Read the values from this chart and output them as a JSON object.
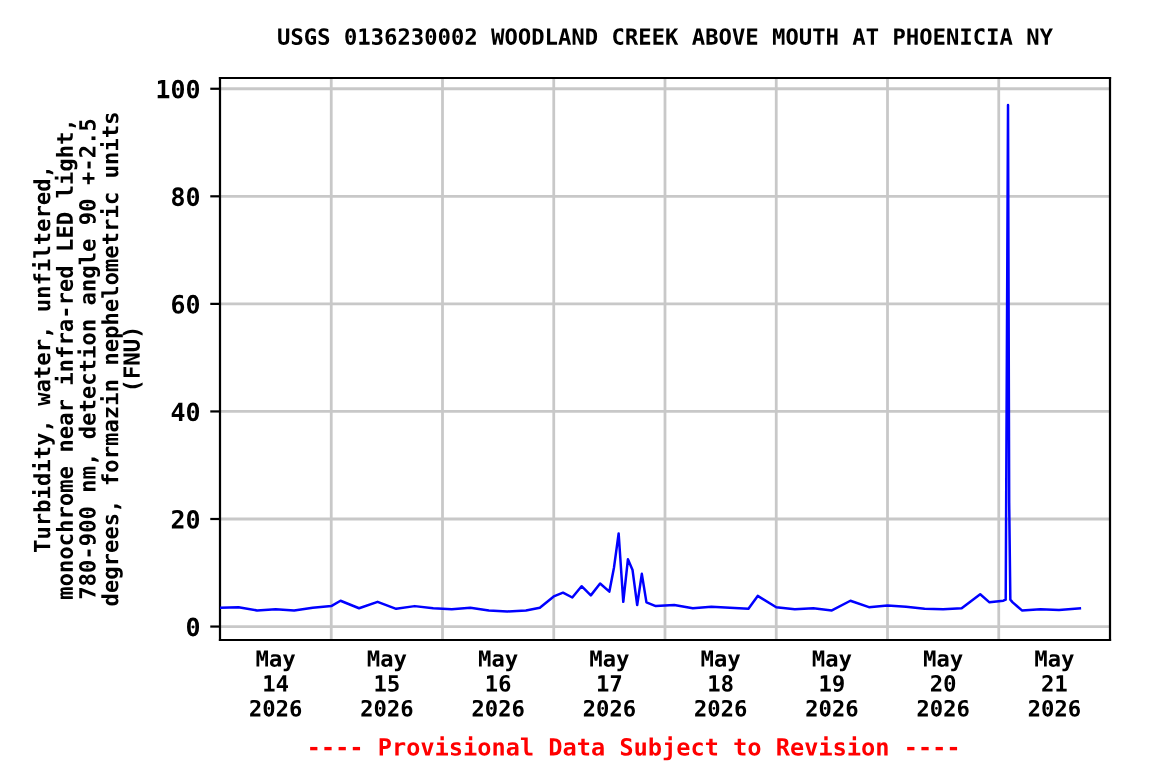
{
  "chart_data": {
    "type": "line",
    "title": "USGS 0136230002 WOODLAND CREEK ABOVE MOUTH AT PHOENICIA NY",
    "ylabel": "Turbidity, water, unfiltered,\nmonochrome near infra-red LED light,\n780-900 nm, detection angle 90 +-2.5\ndegrees, formazin nephelometric units\n(FNU)",
    "annotations": [
      "---- Provisional Data Subject to Revision ----"
    ],
    "xlim": [
      "2026-05-14T00:00",
      "2026-05-22T00:00"
    ],
    "xticks": [
      {
        "value": "2026-05-14T12:00",
        "label": "May\n14\n2026"
      },
      {
        "value": "2026-05-15T12:00",
        "label": "May\n15\n2026"
      },
      {
        "value": "2026-05-16T12:00",
        "label": "May\n16\n2026"
      },
      {
        "value": "2026-05-17T12:00",
        "label": "May\n17\n2026"
      },
      {
        "value": "2026-05-18T12:00",
        "label": "May\n18\n2026"
      },
      {
        "value": "2026-05-19T12:00",
        "label": "May\n19\n2026"
      },
      {
        "value": "2026-05-20T12:00",
        "label": "May\n20\n2026"
      },
      {
        "value": "2026-05-21T12:00",
        "label": "May\n21\n2026"
      },
      {
        "value": "2026-05-15T00:00",
        "label": null
      },
      {
        "value": "2026-05-16T00:00",
        "label": null
      },
      {
        "value": "2026-05-17T00:00",
        "label": null
      },
      {
        "value": "2026-05-18T00:00",
        "label": null
      },
      {
        "value": "2026-05-19T00:00",
        "label": null
      },
      {
        "value": "2026-05-20T00:00",
        "label": null
      },
      {
        "value": "2026-05-21T00:00",
        "label": null
      }
    ],
    "ylim": [
      -2.5,
      102
    ],
    "yticks": [
      0,
      20,
      40,
      60,
      80,
      100
    ],
    "grid": true,
    "series": [
      {
        "color": "#0000ff",
        "x": [
          "2026-05-14T00:00",
          "2026-05-14T04:00",
          "2026-05-14T08:00",
          "2026-05-14T12:00",
          "2026-05-14T16:00",
          "2026-05-14T20:00",
          "2026-05-15T00:00",
          "2026-05-15T02:00",
          "2026-05-15T06:00",
          "2026-05-15T10:00",
          "2026-05-15T14:00",
          "2026-05-15T18:00",
          "2026-05-15T22:00",
          "2026-05-16T02:00",
          "2026-05-16T06:00",
          "2026-05-16T10:00",
          "2026-05-16T14:00",
          "2026-05-16T18:00",
          "2026-05-16T21:00",
          "2026-05-17T00:00",
          "2026-05-17T02:00",
          "2026-05-17T04:00",
          "2026-05-17T06:00",
          "2026-05-17T08:00",
          "2026-05-17T10:00",
          "2026-05-17T12:00",
          "2026-05-17T13:00",
          "2026-05-17T14:00",
          "2026-05-17T15:00",
          "2026-05-17T16:00",
          "2026-05-17T17:00",
          "2026-05-17T18:00",
          "2026-05-17T19:00",
          "2026-05-17T20:00",
          "2026-05-17T22:00",
          "2026-05-18T02:00",
          "2026-05-18T06:00",
          "2026-05-18T10:00",
          "2026-05-18T14:00",
          "2026-05-18T18:00",
          "2026-05-18T20:00",
          "2026-05-19T00:00",
          "2026-05-19T04:00",
          "2026-05-19T08:00",
          "2026-05-19T12:00",
          "2026-05-19T16:00",
          "2026-05-19T20:00",
          "2026-05-20T00:00",
          "2026-05-20T04:00",
          "2026-05-20T08:00",
          "2026-05-20T12:00",
          "2026-05-20T16:00",
          "2026-05-20T20:00",
          "2026-05-20T22:00",
          "2026-05-21T01:00",
          "2026-05-21T01:30",
          "2026-05-21T01:45",
          "2026-05-21T02:00",
          "2026-05-21T02:15",
          "2026-05-21T02:30",
          "2026-05-21T03:00",
          "2026-05-21T05:00",
          "2026-05-21T09:00",
          "2026-05-21T13:00",
          "2026-05-21T17:30"
        ],
        "values": [
          3.5,
          3.6,
          3.0,
          3.2,
          3.0,
          3.5,
          3.8,
          4.8,
          3.4,
          4.6,
          3.3,
          3.8,
          3.4,
          3.2,
          3.5,
          3.0,
          2.8,
          3.0,
          3.5,
          5.6,
          6.3,
          5.4,
          7.5,
          5.8,
          8.0,
          6.5,
          11.0,
          17.3,
          4.6,
          12.5,
          10.5,
          4.0,
          9.8,
          4.5,
          3.8,
          4.0,
          3.4,
          3.7,
          3.5,
          3.3,
          5.7,
          3.6,
          3.2,
          3.4,
          3.0,
          4.8,
          3.6,
          3.9,
          3.7,
          3.3,
          3.2,
          3.4,
          6.0,
          4.5,
          4.8,
          5.0,
          50.0,
          97.0,
          23.0,
          5.0,
          4.5,
          3.0,
          3.2,
          3.1,
          3.4
        ]
      }
    ]
  }
}
